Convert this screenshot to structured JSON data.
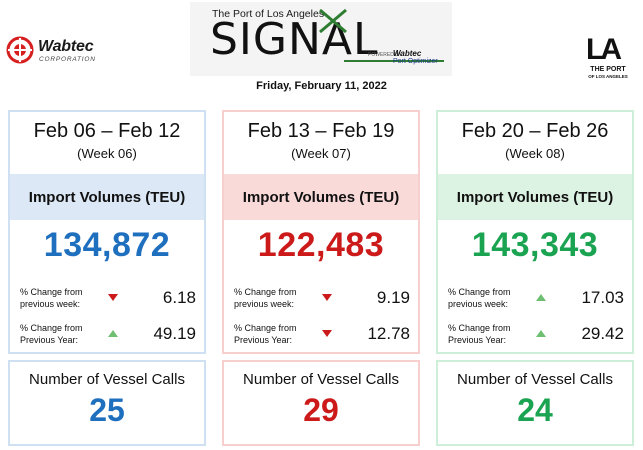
{
  "header": {
    "wabtec_name": "Wabtec",
    "wabtec_sub": "CORPORATION",
    "signal_top": "The Port of Los Angeles",
    "signal_word": "SIGNAL",
    "signal_powered": "POWERED BY",
    "signal_wabtec": "Wabtec",
    "signal_product": "Port Optimizer",
    "la_letters": "LA",
    "la_port": "THE PORT",
    "la_sub": "OF LOS ANGELES",
    "date": "Friday, February 11, 2022"
  },
  "colors": {
    "blue": "#1f6fbf",
    "red": "#cc1a1a",
    "green": "#1aa351",
    "arrow_down": "#cc1a1a",
    "arrow_up": "#6fbf73"
  },
  "weeks": [
    {
      "range": "Feb 06 – Feb 12",
      "week": "(Week 06)",
      "import_title": "Import Volumes (TEU)",
      "teu": "134,872",
      "prev_week_label": "% Change from previous week:",
      "prev_week_direction": "down",
      "prev_week_value": "6.18",
      "prev_year_label": "% Change from Previous Year:",
      "prev_year_direction": "up",
      "prev_year_value": "49.19",
      "vessel_title": "Number of Vessel Calls",
      "vessel_calls": "25"
    },
    {
      "range": "Feb 13 – Feb 19",
      "week": "(Week 07)",
      "import_title": "Import Volumes (TEU)",
      "teu": "122,483",
      "prev_week_label": "% Change from previous week:",
      "prev_week_direction": "down",
      "prev_week_value": "9.19",
      "prev_year_label": "% Change from Previous Year:",
      "prev_year_direction": "down",
      "prev_year_value": "12.78",
      "vessel_title": "Number of Vessel Calls",
      "vessel_calls": "29"
    },
    {
      "range": "Feb 20 – Feb 26",
      "week": "(Week 08)",
      "import_title": "Import Volumes (TEU)",
      "teu": "143,343",
      "prev_week_label": "% Change from previous week:",
      "prev_week_direction": "up",
      "prev_week_value": "17.03",
      "prev_year_label": "% Change from Previous Year:",
      "prev_year_direction": "up",
      "prev_year_value": "29.42",
      "vessel_title": "Number of Vessel Calls",
      "vessel_calls": "24"
    }
  ]
}
